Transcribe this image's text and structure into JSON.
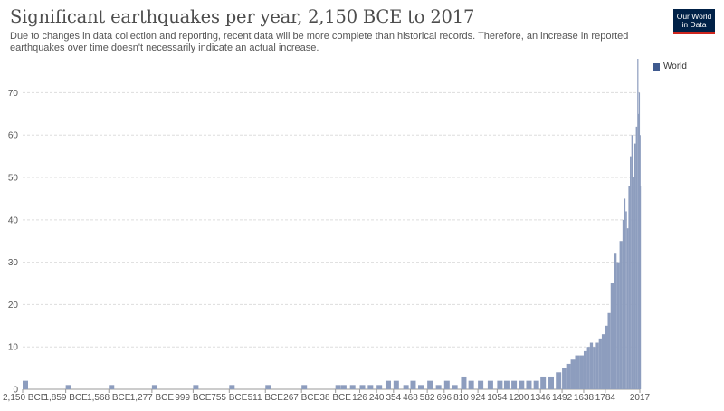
{
  "header": {
    "title": "Significant earthquakes per year, 2,150 BCE to 2017",
    "subtitle": "Due to changes in data collection and reporting, recent data will be more complete than historical records. Therefore, an increase in reported earthquakes over time doesn't necessarily indicate an actual increase.",
    "logo_line1": "Our World",
    "logo_line2": "in Data"
  },
  "legend": {
    "label": "World"
  },
  "colors": {
    "series": "#8d9dbe",
    "legend_swatch": "#3f5a8f",
    "grid": "#dddddd",
    "axis_text": "#555555",
    "logo_bg": "#002147",
    "logo_accent": "#ce261e"
  },
  "chart_data": {
    "type": "bar",
    "title": "Significant earthquakes per year, 2,150 BCE to 2017",
    "xlabel": "",
    "ylabel": "",
    "xlim": [
      -2150,
      2017
    ],
    "ylim": [
      0,
      78
    ],
    "grid": true,
    "legend_position": "top-right",
    "x_ticks": [
      {
        "value": -2150,
        "label": "2,150 BCE"
      },
      {
        "value": -1859,
        "label": "1,859 BCE"
      },
      {
        "value": -1568,
        "label": "1,568 BCE"
      },
      {
        "value": -1277,
        "label": "1,277 BCE"
      },
      {
        "value": -999,
        "label": "999 BCE"
      },
      {
        "value": -755,
        "label": "755 BCE"
      },
      {
        "value": -511,
        "label": "511 BCE"
      },
      {
        "value": -267,
        "label": "267 BCE"
      },
      {
        "value": -38,
        "label": "38 BCE"
      },
      {
        "value": 126,
        "label": "126"
      },
      {
        "value": 240,
        "label": "240"
      },
      {
        "value": 354,
        "label": "354"
      },
      {
        "value": 468,
        "label": "468"
      },
      {
        "value": 582,
        "label": "582"
      },
      {
        "value": 696,
        "label": "696"
      },
      {
        "value": 810,
        "label": "810"
      },
      {
        "value": 924,
        "label": "924"
      },
      {
        "value": 1054,
        "label": "1054"
      },
      {
        "value": 1200,
        "label": "1200"
      },
      {
        "value": 1346,
        "label": "1346"
      },
      {
        "value": 1492,
        "label": "1492"
      },
      {
        "value": 1638,
        "label": "1638"
      },
      {
        "value": 1784,
        "label": "1784"
      },
      {
        "value": 2017,
        "label": "2017"
      }
    ],
    "y_ticks": [
      0,
      10,
      20,
      30,
      40,
      50,
      60,
      70
    ],
    "series": [
      {
        "name": "World",
        "x": [
          -2150,
          -1859,
          -1568,
          -1277,
          -999,
          -755,
          -511,
          -267,
          -38,
          0,
          60,
          126,
          180,
          240,
          300,
          354,
          420,
          468,
          520,
          582,
          640,
          696,
          750,
          810,
          860,
          924,
          990,
          1054,
          1100,
          1150,
          1200,
          1250,
          1300,
          1346,
          1400,
          1450,
          1492,
          1520,
          1550,
          1580,
          1610,
          1638,
          1660,
          1680,
          1700,
          1720,
          1740,
          1760,
          1784,
          1800,
          1820,
          1840,
          1860,
          1880,
          1900,
          1910,
          1920,
          1930,
          1940,
          1950,
          1960,
          1970,
          1980,
          1990,
          2000,
          2005,
          2010,
          2015,
          2017
        ],
        "values": [
          2,
          1,
          1,
          1,
          1,
          1,
          1,
          1,
          1,
          1,
          1,
          1,
          1,
          1,
          2,
          2,
          1,
          2,
          1,
          2,
          1,
          2,
          1,
          3,
          2,
          2,
          2,
          2,
          2,
          2,
          2,
          2,
          2,
          3,
          3,
          4,
          5,
          6,
          7,
          8,
          8,
          9,
          10,
          11,
          10,
          11,
          12,
          13,
          15,
          18,
          25,
          32,
          30,
          35,
          40,
          45,
          42,
          38,
          48,
          55,
          60,
          50,
          58,
          62,
          78,
          65,
          70,
          60,
          48
        ]
      }
    ]
  }
}
